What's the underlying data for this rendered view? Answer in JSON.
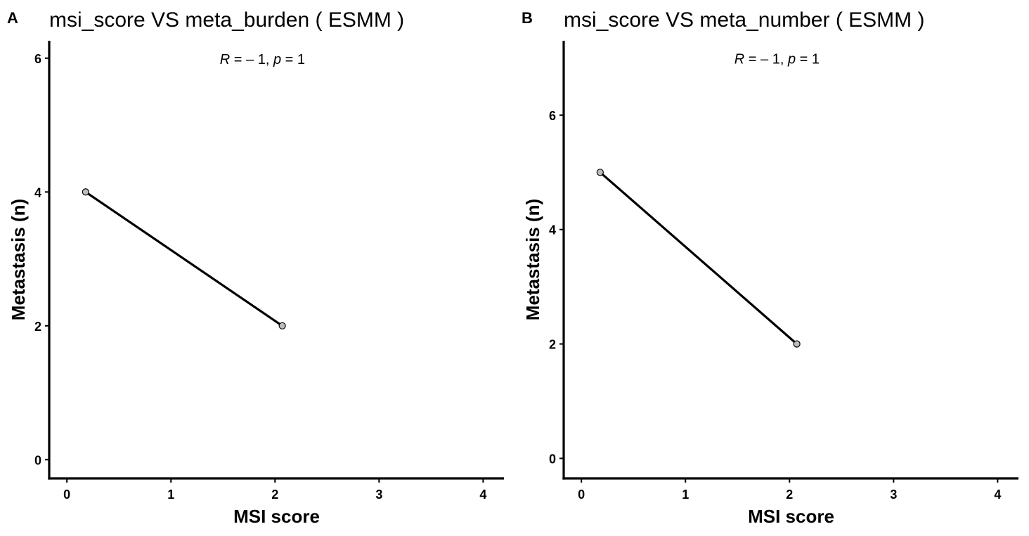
{
  "chart_data": [
    {
      "type": "scatter",
      "panel_label": "A",
      "title": "msi_score  VS  meta_burden ( ESMM )",
      "annotation": {
        "r_symbol": "R",
        "r_value": " = – 1, ",
        "p_symbol": "p",
        "p_value": " = 1"
      },
      "xlabel": "MSI score",
      "ylabel": "Metastasis (n)",
      "xlim": [
        -0.17,
        4.2
      ],
      "ylim": [
        -0.28,
        6.26
      ],
      "xticks": [
        0,
        1,
        2,
        3,
        4
      ],
      "yticks": [
        0,
        2,
        4,
        6
      ],
      "annotation_pos": [
        1.47,
        6.0
      ],
      "points": [
        {
          "x": 0.18,
          "y": 4
        },
        {
          "x": 2.07,
          "y": 2
        }
      ],
      "fit_line": [
        {
          "x": 0.18,
          "y": 4
        },
        {
          "x": 2.07,
          "y": 2
        }
      ]
    },
    {
      "type": "scatter",
      "panel_label": "B",
      "title": "msi_score  VS  meta_number ( ESMM )",
      "annotation": {
        "r_symbol": "R",
        "r_value": " = – 1, ",
        "p_symbol": "p",
        "p_value": " = 1"
      },
      "xlabel": "MSI score",
      "ylabel": "Metastasis (n)",
      "xlim": [
        -0.17,
        4.2
      ],
      "ylim": [
        -0.35,
        7.3
      ],
      "xticks": [
        0,
        1,
        2,
        3,
        4
      ],
      "yticks": [
        0,
        2,
        4,
        6
      ],
      "annotation_pos": [
        1.47,
        7.0
      ],
      "points": [
        {
          "x": 0.18,
          "y": 5
        },
        {
          "x": 2.07,
          "y": 2
        }
      ],
      "fit_line": [
        {
          "x": 0.18,
          "y": 5
        },
        {
          "x": 2.07,
          "y": 2
        }
      ]
    }
  ]
}
